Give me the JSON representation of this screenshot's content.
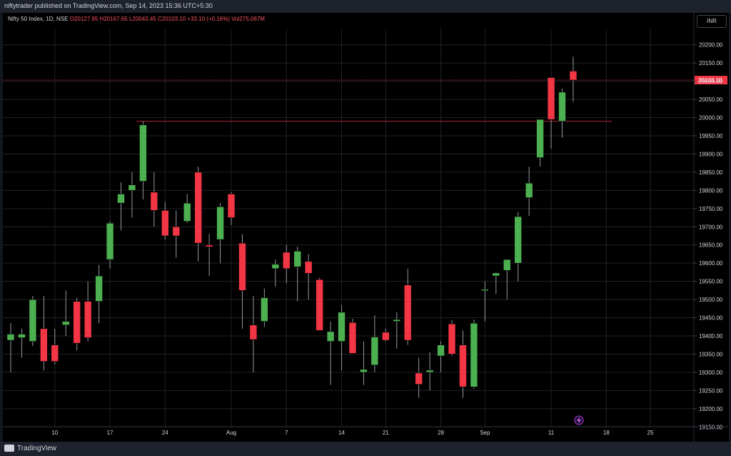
{
  "header": {
    "publisher": "niftytrader published on TradingView.com, Sep 14, 2023 15:36 UTC+5:30"
  },
  "legend": {
    "symbol": "Nifty 50 Index, 1D, NSE",
    "open": "O20127.95",
    "high": "H20167.65",
    "low": "L20043.45",
    "close": "C20103.10",
    "change": "+33.10 (+0.16%)",
    "volume": "Vol275.067M"
  },
  "currency_button": "INR",
  "footer": {
    "brand": "TradingView"
  },
  "colors": {
    "up": "#4caf50",
    "down": "#f23645",
    "background": "#000000",
    "grid": "#1f2228",
    "text": "#d1d4dc"
  },
  "chart_data": {
    "type": "candlestick",
    "title": "Nifty 50 Index, 1D, NSE",
    "ylim": [
      19125,
      20225
    ],
    "y_ticks": [
      "20200.00",
      "20150.00",
      "20100.00",
      "20050.00",
      "20000.00",
      "19950.00",
      "19900.00",
      "19850.00",
      "19800.00",
      "19750.00",
      "19700.00",
      "19650.00",
      "19600.00",
      "19550.00",
      "19500.00",
      "19450.00",
      "19400.00",
      "19350.00",
      "19300.00",
      "19250.00",
      "19200.00",
      "19150.00"
    ],
    "x_ticks": [
      {
        "label": "10",
        "index": 4
      },
      {
        "label": "17",
        "index": 9
      },
      {
        "label": "24",
        "index": 14
      },
      {
        "label": "Aug",
        "index": 20
      },
      {
        "label": "7",
        "index": 25
      },
      {
        "label": "14",
        "index": 30
      },
      {
        "label": "21",
        "index": 34
      },
      {
        "label": "28",
        "index": 39
      },
      {
        "label": "Sep",
        "index": 43
      },
      {
        "label": "11",
        "index": 49
      },
      {
        "label": "18",
        "index": 54
      },
      {
        "label": "25",
        "index": 58
      }
    ],
    "last_price_label": "20103.10",
    "last_price": 20103.1,
    "resistance_level": 19990,
    "grid": true,
    "candles": [
      {
        "o": 19388,
        "h": 19435,
        "l": 19300,
        "c": 19405
      },
      {
        "o": 19395,
        "h": 19420,
        "l": 19340,
        "c": 19405
      },
      {
        "o": 19385,
        "h": 19510,
        "l": 19372,
        "c": 19500
      },
      {
        "o": 19420,
        "h": 19510,
        "l": 19305,
        "c": 19330
      },
      {
        "o": 19375,
        "h": 19420,
        "l": 19322,
        "c": 19330
      },
      {
        "o": 19430,
        "h": 19525,
        "l": 19400,
        "c": 19440
      },
      {
        "o": 19495,
        "h": 19505,
        "l": 19360,
        "c": 19380
      },
      {
        "o": 19495,
        "h": 19550,
        "l": 19385,
        "c": 19395
      },
      {
        "o": 19495,
        "h": 19595,
        "l": 19435,
        "c": 19565
      },
      {
        "o": 19610,
        "h": 19715,
        "l": 19585,
        "c": 19710
      },
      {
        "o": 19765,
        "h": 19822,
        "l": 19690,
        "c": 19790
      },
      {
        "o": 19800,
        "h": 19850,
        "l": 19725,
        "c": 19815
      },
      {
        "o": 19825,
        "h": 19990,
        "l": 19775,
        "c": 19980
      },
      {
        "o": 19795,
        "h": 19850,
        "l": 19700,
        "c": 19745
      },
      {
        "o": 19745,
        "h": 19768,
        "l": 19665,
        "c": 19675
      },
      {
        "o": 19700,
        "h": 19745,
        "l": 19615,
        "c": 19675
      },
      {
        "o": 19715,
        "h": 19790,
        "l": 19710,
        "c": 19765
      },
      {
        "o": 19850,
        "h": 19865,
        "l": 19605,
        "c": 19655
      },
      {
        "o": 19650,
        "h": 19680,
        "l": 19565,
        "c": 19645
      },
      {
        "o": 19665,
        "h": 19765,
        "l": 19600,
        "c": 19755
      },
      {
        "o": 19790,
        "h": 19795,
        "l": 19705,
        "c": 19725
      },
      {
        "o": 19655,
        "h": 19680,
        "l": 19420,
        "c": 19525
      },
      {
        "o": 19430,
        "h": 19510,
        "l": 19300,
        "c": 19390
      },
      {
        "o": 19440,
        "h": 19530,
        "l": 19425,
        "c": 19505
      },
      {
        "o": 19585,
        "h": 19610,
        "l": 19535,
        "c": 19597
      },
      {
        "o": 19630,
        "h": 19650,
        "l": 19545,
        "c": 19585
      },
      {
        "o": 19590,
        "h": 19645,
        "l": 19495,
        "c": 19633
      },
      {
        "o": 19605,
        "h": 19625,
        "l": 19500,
        "c": 19572
      },
      {
        "o": 19555,
        "h": 19560,
        "l": 19415,
        "c": 19415
      },
      {
        "o": 19385,
        "h": 19440,
        "l": 19265,
        "c": 19412
      },
      {
        "o": 19385,
        "h": 19485,
        "l": 19305,
        "c": 19465
      },
      {
        "o": 19437,
        "h": 19447,
        "l": 19355,
        "c": 19352
      },
      {
        "o": 19300,
        "h": 19385,
        "l": 19265,
        "c": 19308
      },
      {
        "o": 19320,
        "h": 19457,
        "l": 19300,
        "c": 19397
      },
      {
        "o": 19410,
        "h": 19420,
        "l": 19385,
        "c": 19388
      },
      {
        "o": 19440,
        "h": 19465,
        "l": 19365,
        "c": 19445
      },
      {
        "o": 19540,
        "h": 19585,
        "l": 19375,
        "c": 19388
      },
      {
        "o": 19298,
        "h": 19340,
        "l": 19230,
        "c": 19267
      },
      {
        "o": 19300,
        "h": 19355,
        "l": 19250,
        "c": 19306
      },
      {
        "o": 19345,
        "h": 19385,
        "l": 19300,
        "c": 19375
      },
      {
        "o": 19433,
        "h": 19444,
        "l": 19345,
        "c": 19350
      },
      {
        "o": 19375,
        "h": 19415,
        "l": 19230,
        "c": 19260
      },
      {
        "o": 19260,
        "h": 19445,
        "l": 19255,
        "c": 19435
      },
      {
        "o": 19525,
        "h": 19550,
        "l": 19440,
        "c": 19528
      },
      {
        "o": 19565,
        "h": 19575,
        "l": 19515,
        "c": 19573
      },
      {
        "o": 19580,
        "h": 19610,
        "l": 19500,
        "c": 19610
      },
      {
        "o": 19600,
        "h": 19740,
        "l": 19550,
        "c": 19728
      },
      {
        "o": 19780,
        "h": 19865,
        "l": 19730,
        "c": 19820
      },
      {
        "o": 19890,
        "h": 19995,
        "l": 19865,
        "c": 19995
      },
      {
        "o": 20110,
        "h": 20110,
        "l": 19915,
        "c": 19995
      },
      {
        "o": 19990,
        "h": 20080,
        "l": 19945,
        "c": 20070
      },
      {
        "o": 20127.95,
        "h": 20167.65,
        "l": 20043.45,
        "c": 20103.1
      }
    ]
  }
}
